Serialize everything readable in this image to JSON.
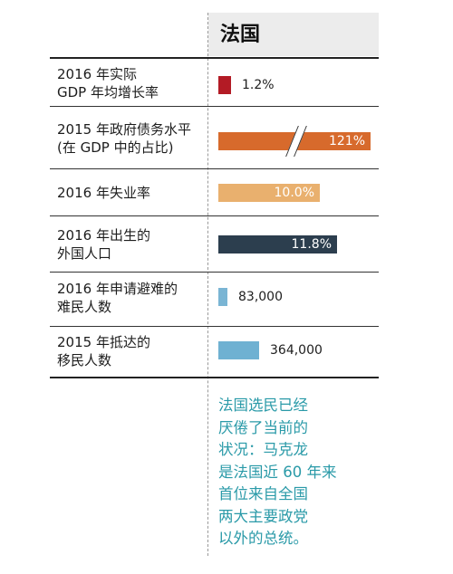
{
  "country": "法国",
  "colors": {
    "gdp_growth": "#b31b25",
    "debt": "#d76a2c",
    "unemployment": "#e9b06e",
    "foreign_born": "#2c3e4e",
    "asylum": "#7ab5d4",
    "migrants": "#6fb1d2",
    "note_text": "#2a9aa8"
  },
  "chart_data": {
    "type": "bar",
    "orientation": "horizontal",
    "categories": [
      [
        "2016 年实际",
        "GDP 年均增长率"
      ],
      [
        "2015 年政府债务水平",
        "(在 GDP 中的占比)"
      ],
      [
        "2016 年失业率"
      ],
      [
        "2016 年出生的",
        "外国人口"
      ],
      [
        "2016 年申请避难的",
        "难民人数"
      ],
      [
        "2015 年抵达的",
        "移民人数"
      ]
    ],
    "series": [
      {
        "values": [
          1.2,
          121,
          10.0,
          11.8,
          83000,
          364000
        ],
        "value_labels": [
          "1.2%",
          "121%",
          "10.0%",
          "11.8%",
          "83,000",
          "364,000"
        ],
        "scale_note": "each indicator drawn on its own scale; debt bar shown with an axis break"
      }
    ]
  },
  "note_lines": [
    "法国选民已经",
    "厌倦了当前的",
    "状况：马克龙",
    "是法国近 60 年来",
    "首位来自全国",
    "两大主要政党",
    "以外的总统。"
  ]
}
